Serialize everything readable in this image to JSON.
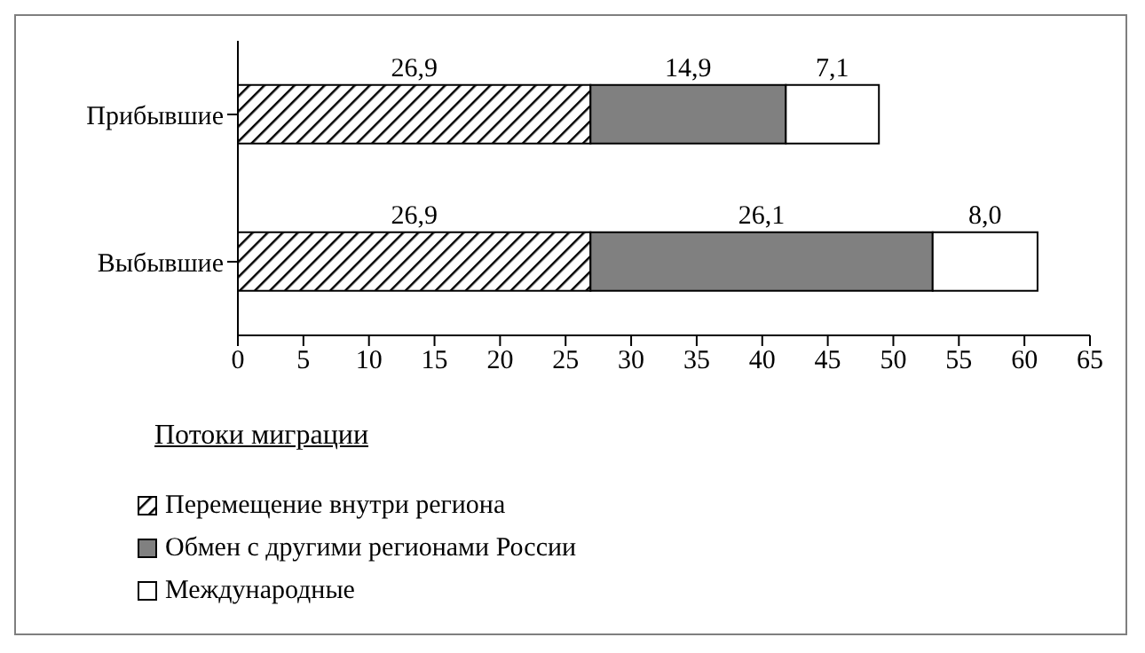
{
  "chart_data": {
    "type": "bar",
    "orientation": "horizontal",
    "stacked": true,
    "categories": [
      "Прибывшие",
      "Выбывшие"
    ],
    "series": [
      {
        "name": "Перемещение внутри региона",
        "color": "#000000",
        "values": [
          26.9,
          26.9
        ],
        "value_labels": [
          "26,9",
          "26,9"
        ]
      },
      {
        "name": "Обмен с другими регионами России",
        "color": "#808080",
        "values": [
          14.9,
          26.1
        ],
        "value_labels": [
          "14,9",
          "26,1"
        ]
      },
      {
        "name": "Международные",
        "color": "#ffffff",
        "values": [
          7.1,
          8.0
        ],
        "value_labels": [
          "7,1",
          "8,0"
        ]
      }
    ],
    "xlim": [
      0,
      65
    ],
    "xticks": [
      0,
      5,
      10,
      15,
      20,
      25,
      30,
      35,
      40,
      45,
      50,
      55,
      60,
      65
    ],
    "legend": "bottom left",
    "legend_title": "Потоки миграции",
    "grid": false
  }
}
